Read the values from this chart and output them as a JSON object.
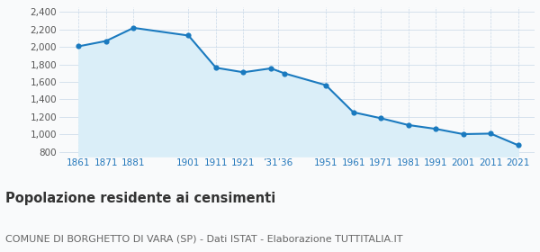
{
  "years": [
    1861,
    1871,
    1881,
    1901,
    1911,
    1921,
    1931,
    1936,
    1951,
    1961,
    1971,
    1981,
    1991,
    2001,
    2011,
    2021
  ],
  "population": [
    2007,
    2068,
    2218,
    2130,
    1762,
    1710,
    1755,
    1697,
    1563,
    1253,
    1185,
    1107,
    1063,
    1003,
    1009,
    876
  ],
  "x_tick_positions": [
    1861,
    1871,
    1881,
    1901,
    1911,
    1921,
    1933.5,
    1951,
    1961,
    1971,
    1981,
    1991,
    2001,
    2011,
    2021
  ],
  "x_tick_labels": [
    "1861",
    "1871",
    "1881",
    "1901",
    "1911",
    "1921",
    "’31’36",
    "1951",
    "1961",
    "1971",
    "1981",
    "1991",
    "2001",
    "2011",
    "2021"
  ],
  "ylim": [
    750,
    2450
  ],
  "yticks": [
    800,
    1000,
    1200,
    1400,
    1600,
    1800,
    2000,
    2200,
    2400
  ],
  "ytick_labels": [
    "800",
    "1,000",
    "1,200",
    "1,400",
    "1,600",
    "1,800",
    "2,000",
    "2,200",
    "2,400"
  ],
  "xlim_left": 1854,
  "xlim_right": 2027,
  "line_color": "#1a7abf",
  "fill_color": "#daeef8",
  "marker_color": "#1a7abf",
  "marker_size": 20,
  "background_color": "#f9fafb",
  "grid_color": "#c8d8e8",
  "title": "Popolazione residente ai censimenti",
  "subtitle": "COMUNE DI BORGHETTO DI VARA (SP) - Dati ISTAT - Elaborazione TUTTITALIA.IT",
  "title_fontsize": 10.5,
  "subtitle_fontsize": 8,
  "tick_fontsize": 7.5,
  "ytick_fontsize": 7.5,
  "title_color": "#333333",
  "subtitle_color": "#666666",
  "xtick_color": "#2277bb"
}
